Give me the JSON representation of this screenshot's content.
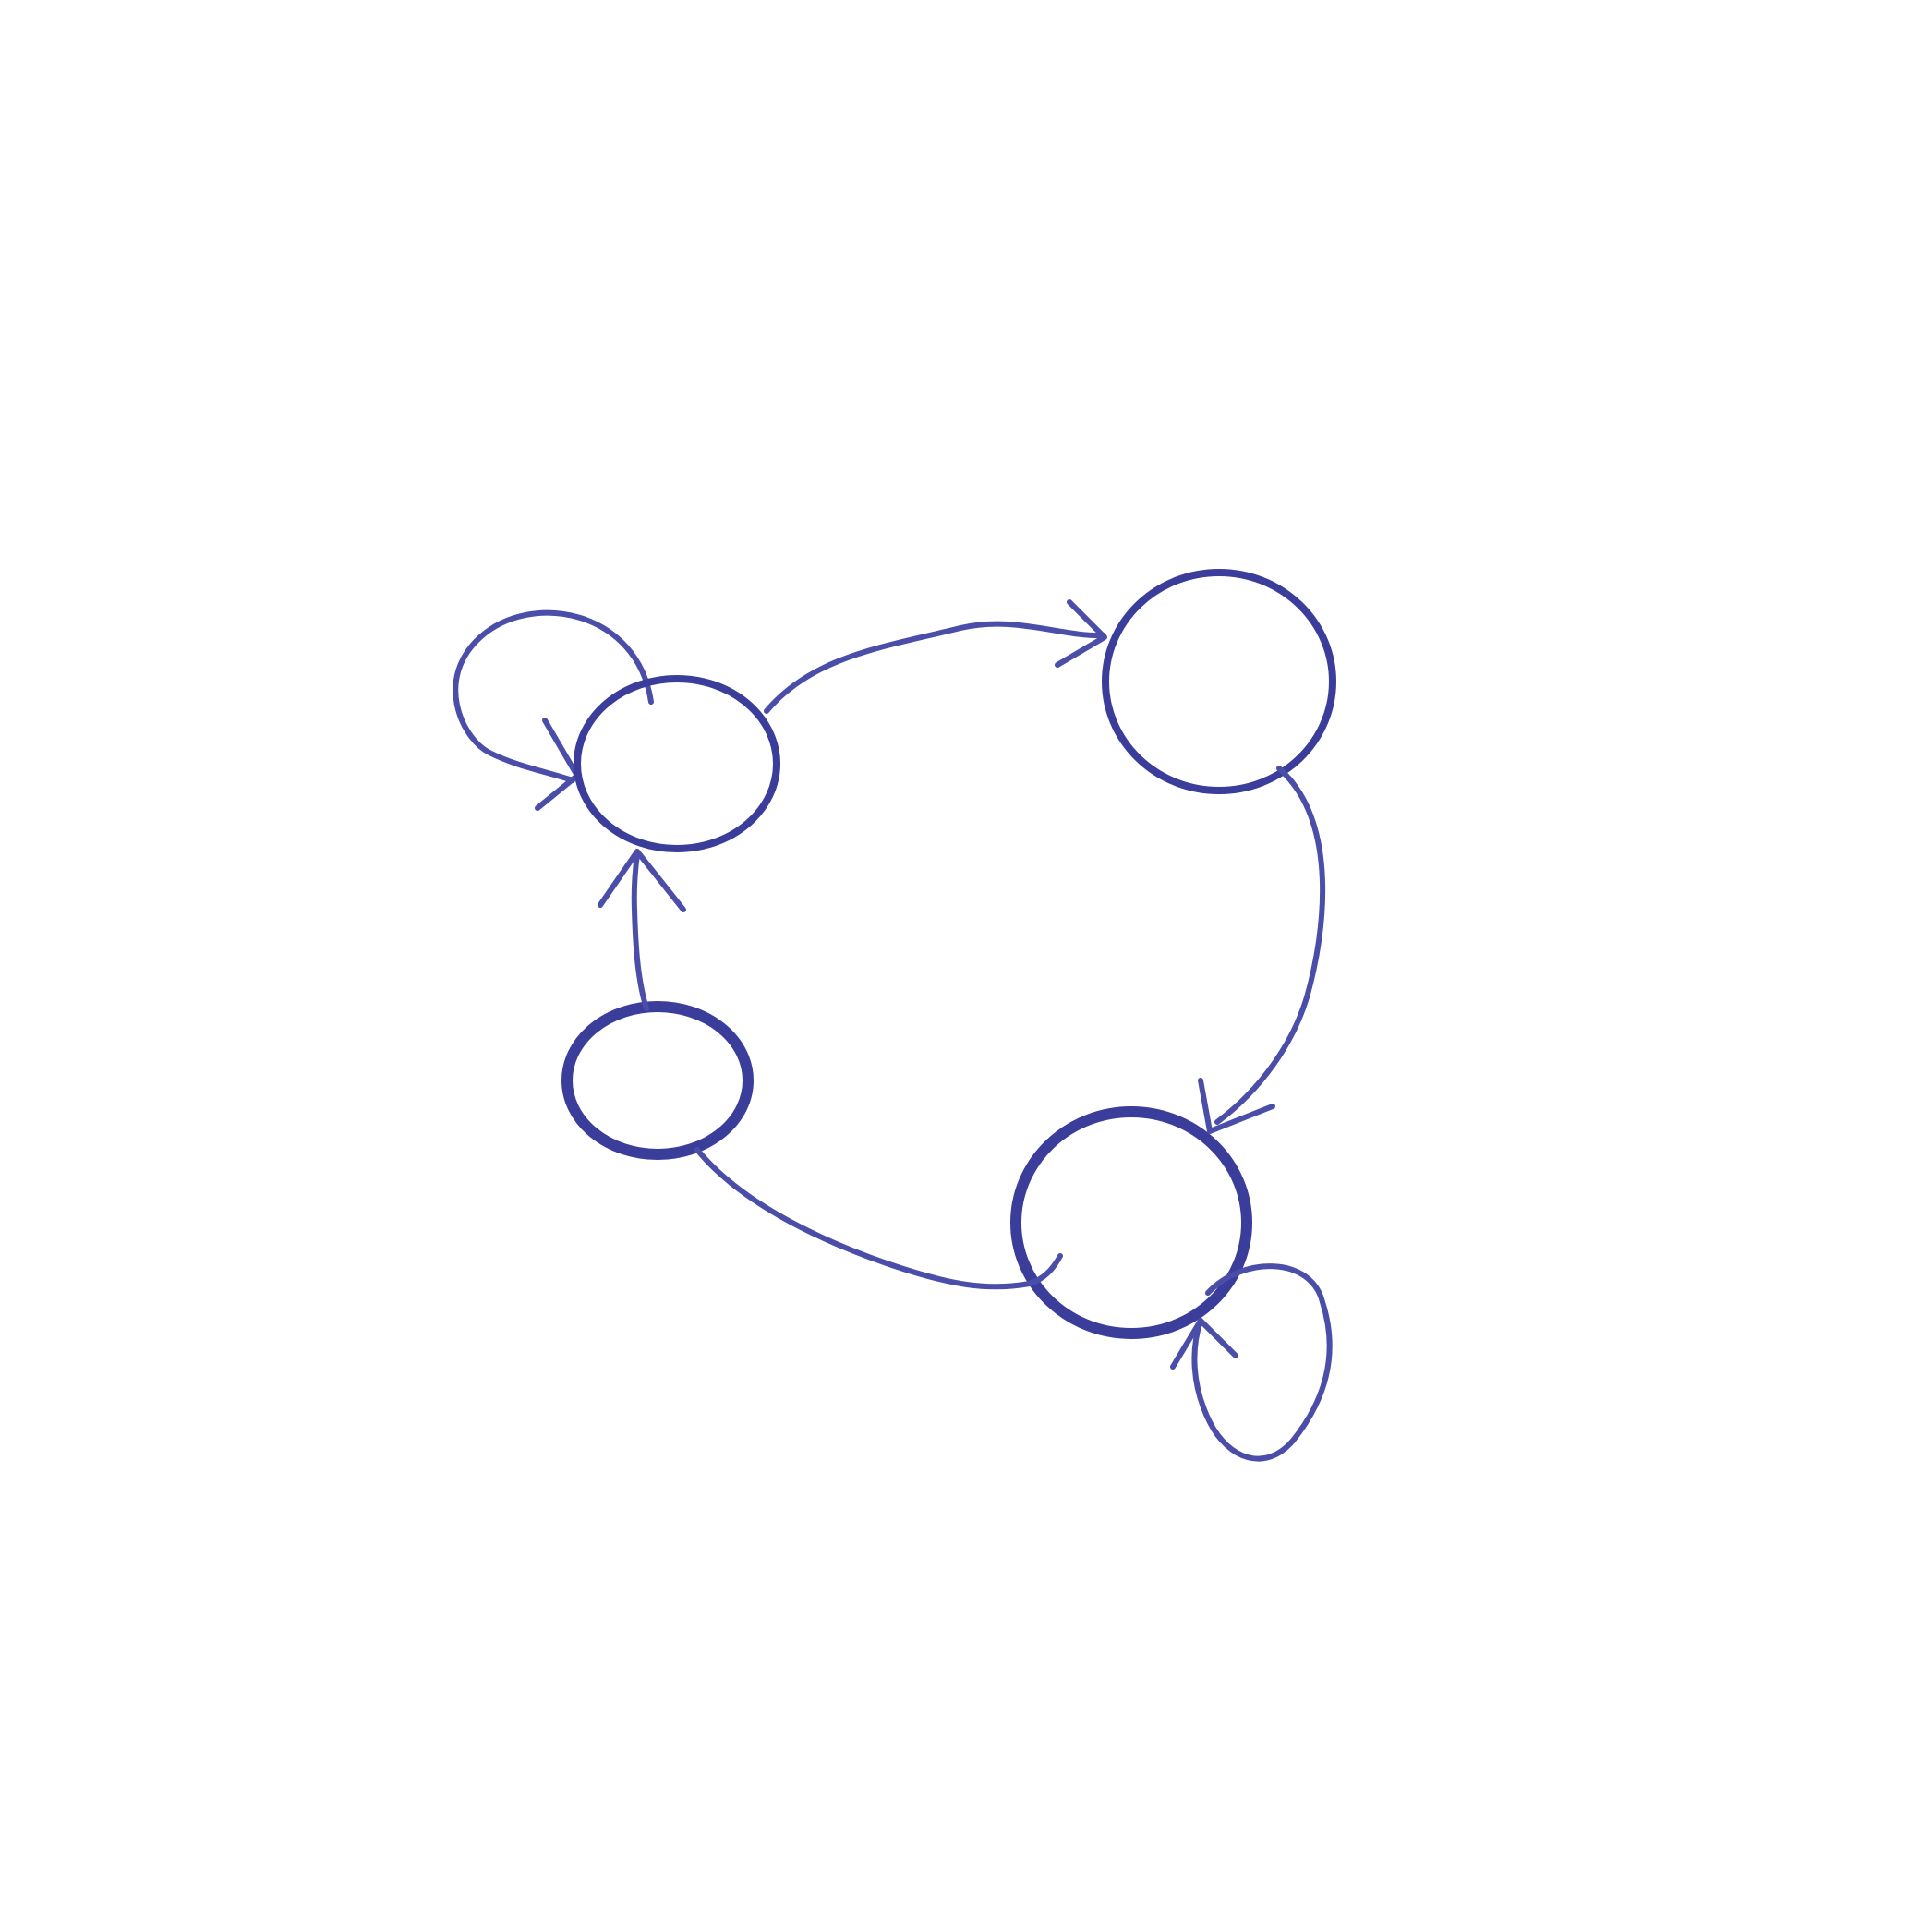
{
  "diagram": {
    "type": "directed-graph",
    "style": "hand-drawn",
    "colors": {
      "background": "#ffffff",
      "ink": "#4a4ea8",
      "ink_dark": "#3a3d9a"
    },
    "nodes": [
      {
        "id": "n1",
        "label": "",
        "self_loop": true
      },
      {
        "id": "n2",
        "label": "",
        "self_loop": false
      },
      {
        "id": "n3",
        "label": "",
        "self_loop": true
      },
      {
        "id": "n4",
        "label": "",
        "self_loop": false
      }
    ],
    "edges": [
      {
        "from": "n1",
        "to": "n2",
        "directed": true
      },
      {
        "from": "n2",
        "to": "n3",
        "directed": true
      },
      {
        "from": "n4",
        "to": "n3",
        "directed": false
      },
      {
        "from": "n4",
        "to": "n1",
        "directed": true
      }
    ]
  }
}
